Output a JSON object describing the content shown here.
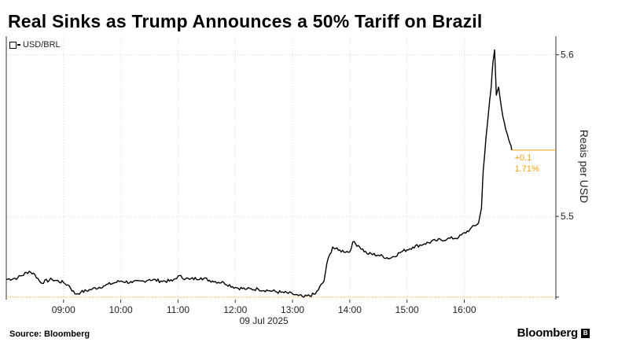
{
  "title": "Real Sinks as Trump Announces a 50% Tariff on Brazil",
  "legend": {
    "label": "USD/BRL"
  },
  "source": "Source: Bloomberg",
  "brand": "Bloomberg",
  "brand_icon": "bloomberg-terminal-icon",
  "colors": {
    "line": "#000000",
    "reference": "#f0a30a",
    "grid": "#d9d9d9",
    "axis": "#333333"
  },
  "chart_data": {
    "type": "line",
    "title": "Real Sinks as Trump Announces a 50% Tariff on Brazil",
    "xlabel": "09 Jul 2025",
    "ylabel": "Reais per USD",
    "ylim": [
      5.4485,
      5.6115
    ],
    "xlim": [
      8.0,
      17.6
    ],
    "x_ticks": [
      9,
      10,
      11,
      12,
      13,
      14,
      15,
      16
    ],
    "x_tick_labels": [
      "09:00",
      "10:00",
      "11:00",
      "12:00",
      "13:00",
      "14:00",
      "15:00",
      "16:00"
    ],
    "x_sublabel": "09 Jul 2025",
    "y_ticks": [
      5.5,
      5.6
    ],
    "y_tick_labels": [
      "5.5",
      "5.6"
    ],
    "grid": true,
    "reference_line": {
      "value": 5.45
    },
    "last_value": 5.541,
    "annotation": {
      "change": "+0.1",
      "pct": "1.71%"
    },
    "series": [
      {
        "name": "USD/BRL",
        "points": [
          [
            8.0,
            5.461
          ],
          [
            8.2,
            5.462
          ],
          [
            8.4,
            5.466
          ],
          [
            8.5,
            5.464
          ],
          [
            8.6,
            5.459
          ],
          [
            8.8,
            5.461
          ],
          [
            9.0,
            5.459
          ],
          [
            9.1,
            5.457
          ],
          [
            9.2,
            5.452
          ],
          [
            9.3,
            5.453
          ],
          [
            9.5,
            5.455
          ],
          [
            9.7,
            5.457
          ],
          [
            9.9,
            5.459
          ],
          [
            10.0,
            5.46
          ],
          [
            10.2,
            5.459
          ],
          [
            10.4,
            5.46
          ],
          [
            10.5,
            5.461
          ],
          [
            10.7,
            5.46
          ],
          [
            10.9,
            5.46
          ],
          [
            11.0,
            5.463
          ],
          [
            11.2,
            5.461
          ],
          [
            11.4,
            5.462
          ],
          [
            11.6,
            5.46
          ],
          [
            11.8,
            5.459
          ],
          [
            12.0,
            5.456
          ],
          [
            12.2,
            5.455
          ],
          [
            12.4,
            5.455
          ],
          [
            12.6,
            5.454
          ],
          [
            12.8,
            5.453
          ],
          [
            13.0,
            5.452
          ],
          [
            13.1,
            5.451
          ],
          [
            13.2,
            5.45
          ],
          [
            13.4,
            5.452
          ],
          [
            13.55,
            5.46
          ],
          [
            13.6,
            5.471
          ],
          [
            13.7,
            5.481
          ],
          [
            13.8,
            5.479
          ],
          [
            14.0,
            5.478
          ],
          [
            14.05,
            5.484
          ],
          [
            14.15,
            5.482
          ],
          [
            14.3,
            5.477
          ],
          [
            14.5,
            5.476
          ],
          [
            14.7,
            5.474
          ],
          [
            14.9,
            5.478
          ],
          [
            15.1,
            5.481
          ],
          [
            15.3,
            5.483
          ],
          [
            15.5,
            5.485
          ],
          [
            15.7,
            5.486
          ],
          [
            15.9,
            5.487
          ],
          [
            16.1,
            5.492
          ],
          [
            16.25,
            5.496
          ],
          [
            16.3,
            5.505
          ],
          [
            16.33,
            5.528
          ],
          [
            16.38,
            5.549
          ],
          [
            16.42,
            5.563
          ],
          [
            16.47,
            5.58
          ],
          [
            16.5,
            5.595
          ],
          [
            16.53,
            5.603
          ],
          [
            16.56,
            5.575
          ],
          [
            16.6,
            5.58
          ],
          [
            16.65,
            5.567
          ],
          [
            16.7,
            5.558
          ],
          [
            16.75,
            5.551
          ],
          [
            16.8,
            5.545
          ],
          [
            16.83,
            5.541
          ]
        ]
      }
    ]
  }
}
